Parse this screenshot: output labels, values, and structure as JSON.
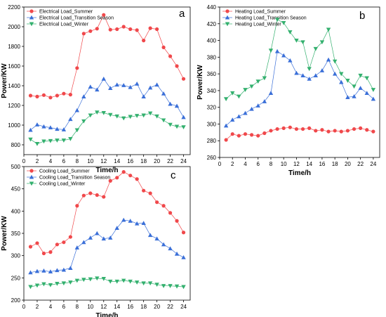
{
  "chart_data": [
    {
      "panel_label": "a",
      "type": "line",
      "x": [
        1,
        2,
        3,
        4,
        5,
        6,
        7,
        8,
        9,
        10,
        11,
        12,
        13,
        14,
        15,
        16,
        17,
        18,
        19,
        20,
        21,
        22,
        23,
        24
      ],
      "xlabel": "Time/h",
      "ylabel": "Power/KW",
      "xlim": [
        0,
        25
      ],
      "ylim": [
        700,
        2200
      ],
      "xticks": [
        0,
        2,
        4,
        6,
        8,
        10,
        12,
        14,
        16,
        18,
        20,
        22,
        24
      ],
      "yticks": [
        800,
        1000,
        1200,
        1400,
        1600,
        1800,
        2000,
        2200
      ],
      "legend_position": "top-left",
      "series": [
        {
          "name": "Electrical Load_Summer",
          "color": "#f0484b",
          "marker": "circle",
          "values": [
            1300,
            1290,
            1305,
            1280,
            1300,
            1320,
            1310,
            1580,
            1930,
            1955,
            1980,
            2120,
            1970,
            1975,
            2000,
            1975,
            1965,
            1860,
            1985,
            1975,
            1790,
            1700,
            1600,
            1470
          ]
        },
        {
          "name": "Electrical Load_Transition Season",
          "color": "#3a6fd8",
          "marker": "triangle-up",
          "values": [
            950,
            1005,
            985,
            975,
            960,
            955,
            1060,
            1150,
            1290,
            1390,
            1360,
            1470,
            1375,
            1410,
            1405,
            1385,
            1420,
            1290,
            1380,
            1410,
            1320,
            1215,
            1195,
            1080
          ]
        },
        {
          "name": "Electrical Load_Winter",
          "color": "#33b06e",
          "marker": "triangle-down",
          "values": [
            855,
            810,
            835,
            840,
            845,
            845,
            860,
            950,
            1040,
            1100,
            1130,
            1125,
            1105,
            1090,
            1070,
            1085,
            1095,
            1100,
            1120,
            1090,
            1050,
            1005,
            985,
            980
          ]
        }
      ]
    },
    {
      "panel_label": "b",
      "type": "line",
      "x": [
        1,
        2,
        3,
        4,
        5,
        6,
        7,
        8,
        9,
        10,
        11,
        12,
        13,
        14,
        15,
        16,
        17,
        18,
        19,
        20,
        21,
        22,
        23,
        24
      ],
      "xlabel": "Time/h",
      "ylabel": "Power/KW",
      "xlim": [
        0,
        25
      ],
      "ylim": [
        260,
        440
      ],
      "xticks": [
        0,
        2,
        4,
        6,
        8,
        10,
        12,
        14,
        16,
        18,
        20,
        22,
        24
      ],
      "yticks": [
        260,
        280,
        300,
        320,
        340,
        360,
        380,
        400,
        420,
        440
      ],
      "legend_position": "top-left",
      "series": [
        {
          "name": "Heating Load_Summer",
          "color": "#f0484b",
          "marker": "circle",
          "values": [
            281,
            288,
            286,
            288,
            287,
            286,
            289,
            292,
            294,
            295,
            296,
            294,
            294,
            295,
            292,
            293,
            291,
            292,
            291,
            292,
            294,
            295,
            293,
            291
          ]
        },
        {
          "name": "Heating Load_Transition Season",
          "color": "#3a6fd8",
          "marker": "triangle-up",
          "values": [
            298,
            305,
            309,
            313,
            318,
            322,
            327,
            337,
            387,
            382,
            376,
            361,
            358,
            354,
            358,
            364,
            377,
            360,
            350,
            332,
            333,
            343,
            337,
            330
          ]
        },
        {
          "name": "Heating Load_Winter",
          "color": "#33b06e",
          "marker": "triangle-down",
          "values": [
            330,
            337,
            333,
            341,
            345,
            351,
            355,
            388,
            425,
            421,
            410,
            400,
            398,
            366,
            390,
            398,
            413,
            375,
            360,
            352,
            345,
            358,
            355,
            341
          ]
        }
      ]
    },
    {
      "panel_label": "c",
      "type": "line",
      "x": [
        1,
        2,
        3,
        4,
        5,
        6,
        7,
        8,
        9,
        10,
        11,
        12,
        13,
        14,
        15,
        16,
        17,
        18,
        19,
        20,
        21,
        22,
        23,
        24
      ],
      "xlabel": "Time/h",
      "ylabel": "Power/KW",
      "xlim": [
        0,
        25
      ],
      "ylim": [
        200,
        500
      ],
      "xticks": [
        0,
        2,
        4,
        6,
        8,
        10,
        12,
        14,
        16,
        18,
        20,
        22,
        24
      ],
      "yticks": [
        200,
        250,
        300,
        350,
        400,
        450,
        500
      ],
      "legend_position": "top-left",
      "series": [
        {
          "name": "Cooling Load_Summer",
          "color": "#f0484b",
          "marker": "circle",
          "values": [
            320,
            328,
            305,
            308,
            325,
            330,
            342,
            412,
            435,
            440,
            436,
            432,
            468,
            475,
            488,
            480,
            472,
            446,
            440,
            420,
            412,
            396,
            378,
            352
          ]
        },
        {
          "name": "Cooling Load_Transition Season",
          "color": "#3a6fd8",
          "marker": "triangle-up",
          "values": [
            262,
            265,
            266,
            264,
            267,
            268,
            272,
            318,
            330,
            340,
            350,
            338,
            340,
            362,
            380,
            378,
            372,
            373,
            346,
            338,
            325,
            316,
            304,
            296
          ]
        },
        {
          "name": "Cooling Load_Winter",
          "color": "#33b06e",
          "marker": "triangle-down",
          "values": [
            230,
            233,
            236,
            234,
            237,
            238,
            240,
            244,
            246,
            247,
            249,
            248,
            242,
            242,
            244,
            242,
            240,
            238,
            238,
            235,
            232,
            232,
            231,
            230
          ]
        }
      ]
    }
  ]
}
